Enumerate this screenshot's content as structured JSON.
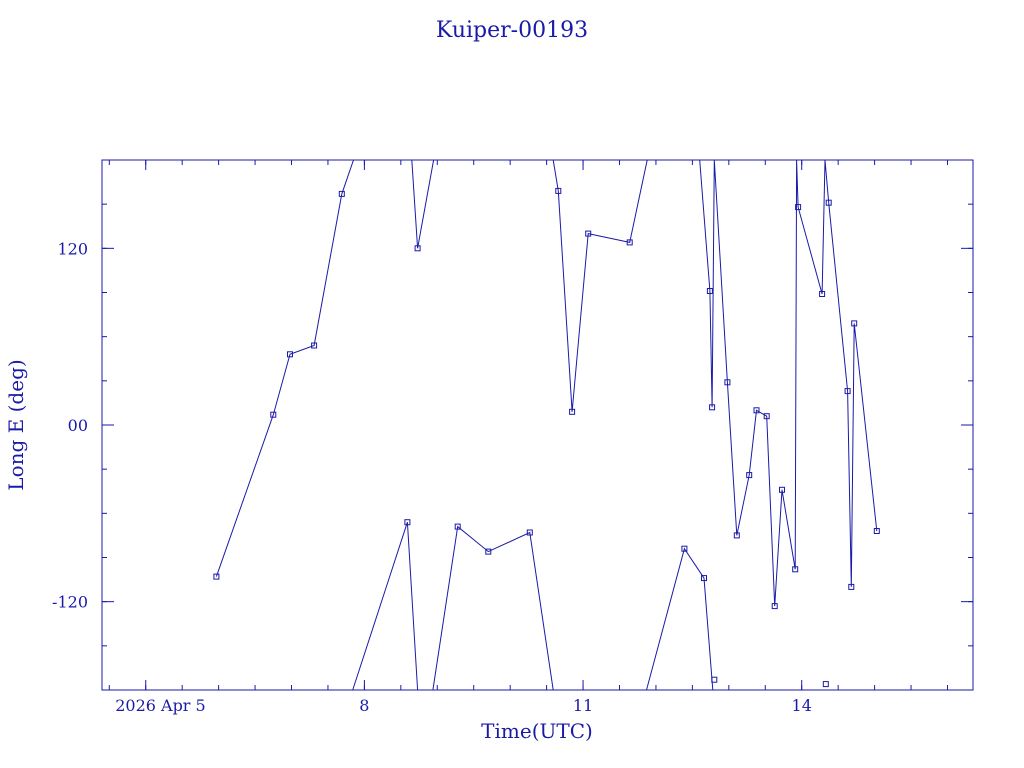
{
  "colors": {
    "ink": "#1a1aa8",
    "background": "#ffffff"
  },
  "chart_data": {
    "type": "line",
    "title": "Kuiper-00193",
    "xlabel": "Time(UTC)",
    "ylabel": "Long E (deg)",
    "x_unit": "days of April 2026 (UTC)",
    "xlim": [
      3.4,
      15.35
    ],
    "ylim": [
      -180,
      180
    ],
    "grid": false,
    "marker": "square",
    "x_ticks": [
      {
        "value": 4,
        "label": "2026 Apr 5"
      },
      {
        "value": 7,
        "label": "8"
      },
      {
        "value": 10,
        "label": "11"
      },
      {
        "value": 13,
        "label": "14"
      }
    ],
    "x_minor_step": 0.5,
    "y_ticks": [
      {
        "value": 120,
        "label": "120"
      },
      {
        "value": 0,
        "label": "00"
      },
      {
        "value": -120,
        "label": "-120"
      }
    ],
    "y_minor_step": 30,
    "series": [
      {
        "points": [
          [
            4.97,
            -103
          ],
          [
            5.75,
            7
          ],
          [
            5.98,
            48
          ],
          [
            6.31,
            54
          ],
          [
            6.69,
            157
          ],
          [
            6.85,
            180
          ],
          [
            7.65,
            180
          ],
          [
            7.73,
            120
          ],
          [
            7.95,
            180
          ],
          [
            9.59,
            180
          ],
          [
            9.66,
            159
          ],
          [
            9.85,
            9
          ],
          [
            10.07,
            130
          ],
          [
            10.64,
            124
          ],
          [
            10.88,
            180
          ],
          [
            11.6,
            180
          ],
          [
            11.74,
            91
          ],
          [
            11.77,
            12
          ],
          [
            11.8,
            180
          ],
          [
            11.98,
            29
          ],
          [
            12.11,
            -75
          ],
          [
            12.28,
            -34
          ],
          [
            12.38,
            10
          ],
          [
            12.52,
            6
          ],
          [
            12.63,
            -123
          ],
          [
            12.73,
            -44
          ],
          [
            12.91,
            -98
          ],
          [
            12.93,
            180
          ],
          [
            12.95,
            148
          ],
          [
            13.28,
            89
          ],
          [
            13.32,
            180
          ],
          [
            13.37,
            151
          ],
          [
            13.63,
            23
          ],
          [
            13.68,
            -110
          ],
          [
            13.72,
            69
          ],
          [
            14.03,
            -72
          ]
        ]
      },
      {
        "points": [
          [
            6.84,
            -180
          ],
          [
            7.59,
            -66
          ],
          [
            7.73,
            -180
          ],
          [
            7.94,
            -180
          ],
          [
            8.28,
            -69
          ],
          [
            8.7,
            -86
          ],
          [
            9.27,
            -73
          ],
          [
            9.59,
            -180
          ],
          [
            10.87,
            -180
          ],
          [
            11.39,
            -84
          ],
          [
            11.66,
            -104
          ],
          [
            11.78,
            -180
          ]
        ]
      },
      {
        "points": [
          [
            11.8,
            -173
          ]
        ]
      },
      {
        "points": [
          [
            13.33,
            -176
          ]
        ]
      }
    ]
  }
}
